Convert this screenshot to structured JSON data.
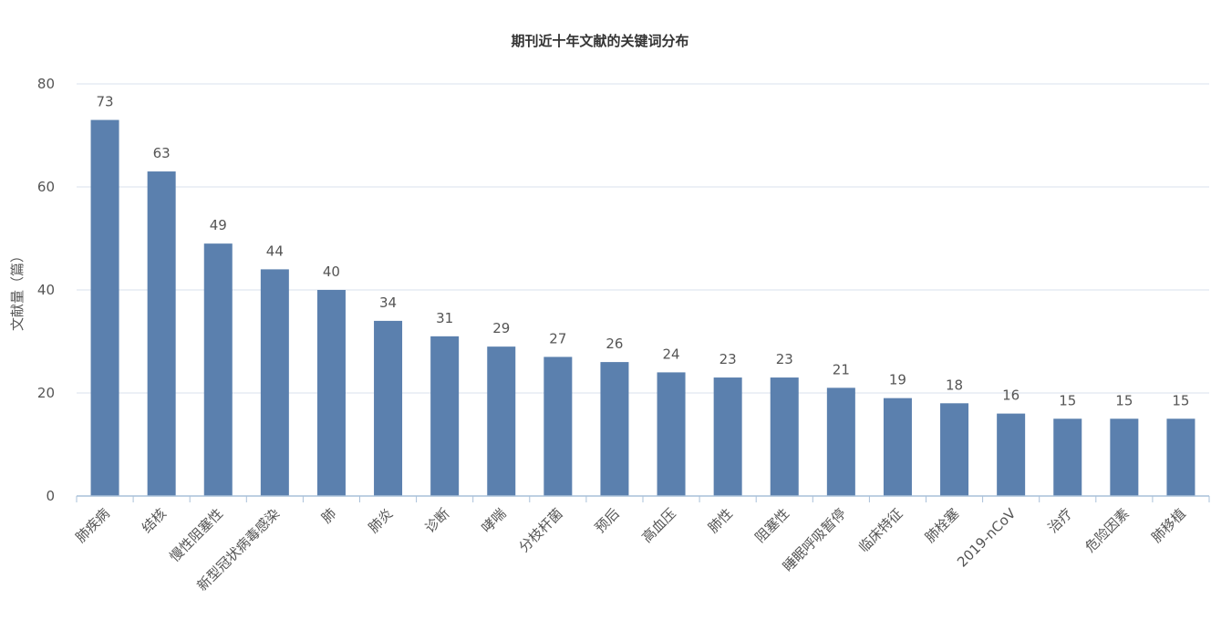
{
  "chart_data": {
    "type": "bar",
    "title": "期刊近十年文献的关键词分布",
    "xlabel": "",
    "ylabel": "文献量（篇）",
    "ylim": [
      0,
      80
    ],
    "yticks": [
      0,
      20,
      40,
      60,
      80
    ],
    "grid": true,
    "legend": "none",
    "categories": [
      "肺疾病",
      "结核",
      "慢性阻塞性",
      "新型冠状病毒感染",
      "肺",
      "肺炎",
      "诊断",
      "哮喘",
      "分枝杆菌",
      "预后",
      "高血压",
      "肺性",
      "阻塞性",
      "睡眠呼吸暂停",
      "临床特征",
      "肺栓塞",
      "2019-nCoV",
      "治疗",
      "危险因素",
      "肺移植"
    ],
    "values": [
      73,
      63,
      49,
      44,
      40,
      34,
      31,
      29,
      27,
      26,
      24,
      23,
      23,
      21,
      19,
      18,
      16,
      15,
      15,
      15
    ],
    "colors": {
      "bar": "#5b80ae",
      "grid": "#d9e2ec",
      "axis": "#a9c0d9",
      "text": "#555555"
    }
  }
}
